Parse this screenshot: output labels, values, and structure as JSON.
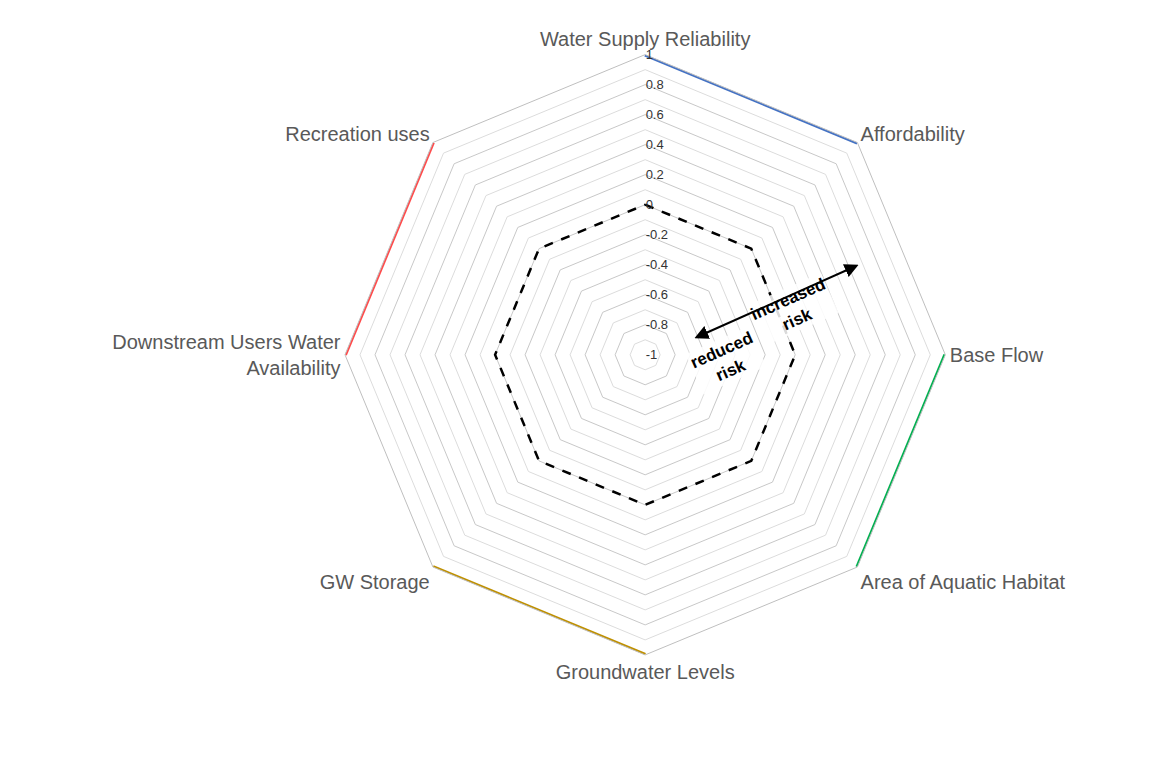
{
  "chart_data": {
    "type": "radar",
    "categories": [
      "Water Supply Reliability",
      "Affordability",
      "Base Flow",
      "Area of Aquatic Habitat",
      "Groundwater Levels",
      "GW Storage",
      "Downstream Users Water Availability",
      "Recreation uses"
    ],
    "ylim": [
      -1,
      1
    ],
    "yticks": [
      -1,
      -0.8,
      -0.6,
      -0.4,
      -0.2,
      0,
      0.2,
      0.4,
      0.6,
      0.8,
      1
    ],
    "grid": true,
    "series": [
      {
        "values": [
          0,
          0,
          0,
          0,
          0,
          0,
          0,
          0
        ],
        "color": "#000000",
        "line_style": "dashed"
      }
    ],
    "groups": [
      {
        "categories": [
          "Water Supply Reliability",
          "Affordability"
        ],
        "color": "#4472c4"
      },
      {
        "categories": [
          "Base Flow",
          "Area of Aquatic Habitat"
        ],
        "color": "#00b050"
      },
      {
        "categories": [
          "Groundwater Levels",
          "GW Storage"
        ],
        "color": "#bf9000"
      },
      {
        "categories": [
          "Downstream Users Water Availability",
          "Recreation uses"
        ],
        "color": "#ff4b4b"
      }
    ],
    "annotations": [
      "increased risk",
      "reduced risk"
    ]
  }
}
